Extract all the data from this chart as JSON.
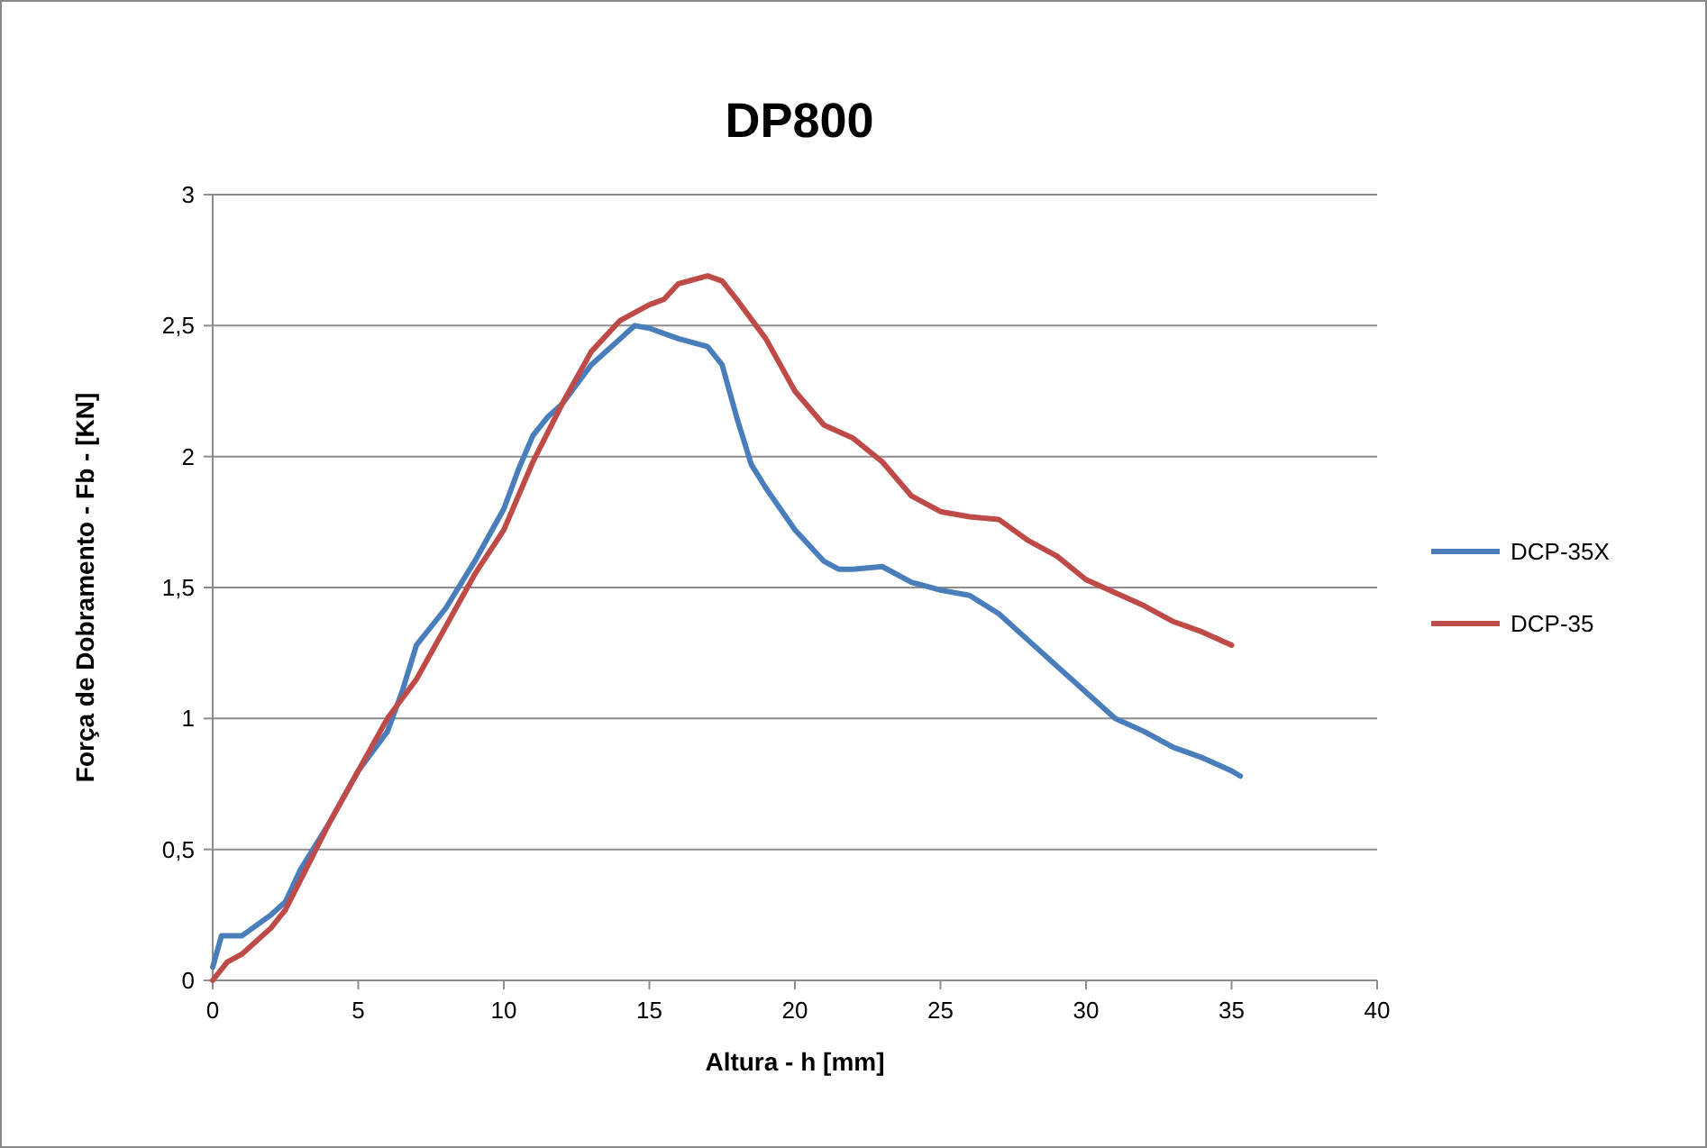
{
  "chart_data": {
    "type": "line",
    "title": "DP800",
    "xlabel": "Altura - h [mm]",
    "ylabel": "Força de Dobramento - Fb -  [KN]",
    "xlim": [
      0,
      40
    ],
    "xticks": [
      0,
      5,
      10,
      15,
      20,
      25,
      30,
      35,
      40
    ],
    "ylim": [
      0,
      3
    ],
    "yticks": [
      0,
      {
        "value": 0.5,
        "label": "0,5"
      },
      1,
      {
        "value": 1.5,
        "label": "1,5"
      },
      2,
      {
        "value": 2.5,
        "label": "2,5"
      },
      3
    ],
    "grid": "y",
    "legend": "right",
    "marker": "none",
    "line_style": "solid",
    "series": [
      {
        "name": "DCP-35X",
        "color": "#4a7ebb",
        "x": [
          0,
          0.3,
          1,
          2,
          2.5,
          3,
          4,
          5,
          6,
          6.5,
          7,
          8,
          9,
          10,
          10.5,
          11,
          11.5,
          12,
          13,
          14,
          14.5,
          15,
          16,
          17,
          17.5,
          18,
          18.5,
          19,
          20,
          21,
          21.5,
          22,
          23,
          24,
          25,
          26,
          27,
          28,
          29,
          30,
          31,
          32,
          33,
          34,
          35,
          35.3
        ],
        "values": [
          0.05,
          0.17,
          0.17,
          0.25,
          0.3,
          0.42,
          0.6,
          0.8,
          0.95,
          1.1,
          1.28,
          1.42,
          1.6,
          1.8,
          1.95,
          2.08,
          2.15,
          2.2,
          2.35,
          2.45,
          2.5,
          2.49,
          2.45,
          2.42,
          2.35,
          2.15,
          1.97,
          1.88,
          1.72,
          1.6,
          1.57,
          1.57,
          1.58,
          1.52,
          1.49,
          1.47,
          1.4,
          1.3,
          1.2,
          1.1,
          1.0,
          0.95,
          0.89,
          0.85,
          0.8,
          0.78
        ]
      },
      {
        "name": "DCP-35",
        "color": "#be4b48",
        "x": [
          0,
          0.5,
          1,
          2,
          2.5,
          3,
          4,
          5,
          6,
          7,
          8,
          9,
          10,
          11,
          12,
          13,
          14,
          15,
          15.5,
          16,
          17,
          17.5,
          18,
          19,
          20,
          21,
          22,
          23,
          24,
          25,
          26,
          27,
          28,
          29,
          30,
          31,
          32,
          33,
          34,
          35
        ],
        "values": [
          0,
          0.07,
          0.1,
          0.2,
          0.27,
          0.38,
          0.6,
          0.8,
          1.0,
          1.15,
          1.35,
          1.55,
          1.72,
          1.98,
          2.2,
          2.4,
          2.52,
          2.58,
          2.6,
          2.66,
          2.69,
          2.67,
          2.6,
          2.45,
          2.25,
          2.12,
          2.07,
          1.98,
          1.85,
          1.79,
          1.77,
          1.76,
          1.68,
          1.62,
          1.53,
          1.48,
          1.43,
          1.37,
          1.33,
          1.28
        ]
      }
    ]
  }
}
